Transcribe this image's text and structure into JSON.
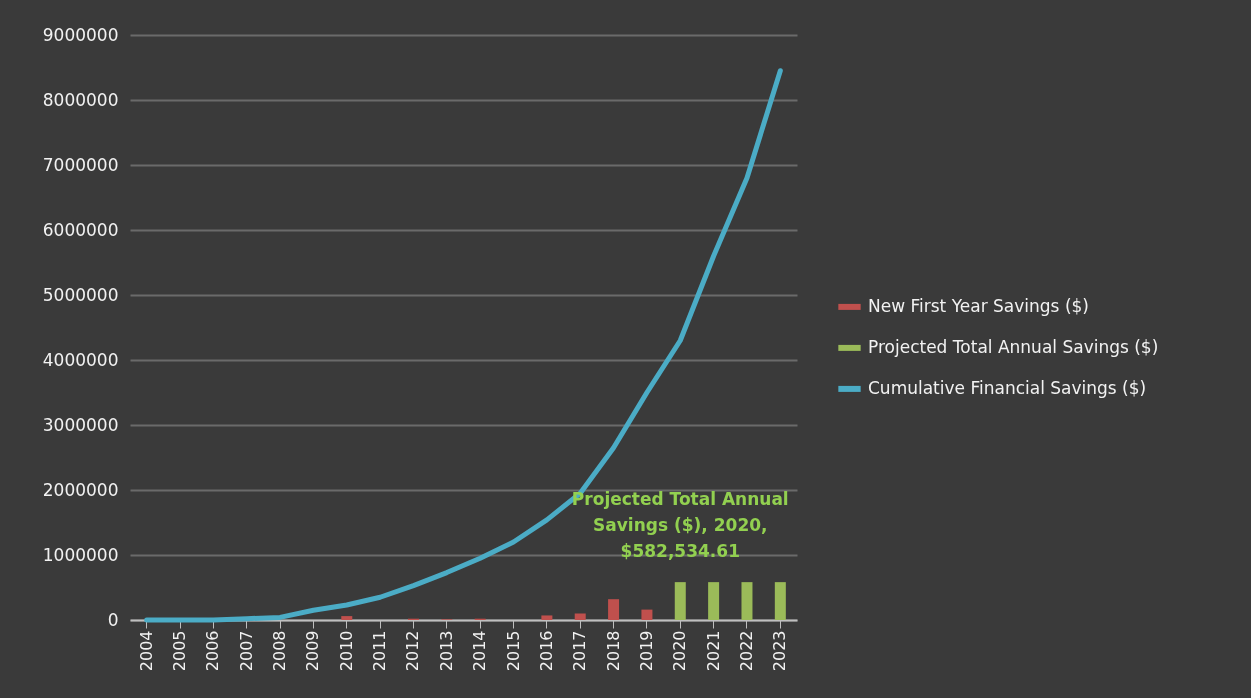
{
  "chart_data": {
    "type": "bar",
    "categories": [
      "2004",
      "2005",
      "2006",
      "2007",
      "2008",
      "2009",
      "2010",
      "2011",
      "2012",
      "2013",
      "2014",
      "2015",
      "2016",
      "2017",
      "2018",
      "2019",
      "2020",
      "2021",
      "2022",
      "2023"
    ],
    "series": [
      {
        "name": "New First Year Savings ($)",
        "color": "#c0504d",
        "values": [
          null,
          null,
          null,
          null,
          null,
          null,
          60000,
          null,
          20000,
          10000,
          20000,
          null,
          70000,
          100000,
          320000,
          160000,
          null,
          null,
          null,
          null
        ]
      },
      {
        "name": "Projected Total Annual Savings ($)",
        "color": "#9bbb59",
        "values": [
          null,
          null,
          null,
          null,
          null,
          null,
          null,
          null,
          null,
          null,
          null,
          null,
          null,
          null,
          null,
          null,
          582534.61,
          582534.61,
          582534.61,
          582534.61
        ]
      },
      {
        "name": "Cumulative Financial Savings ($)",
        "type": "line",
        "color": "#4bacc6",
        "values": [
          0,
          0,
          0,
          20000,
          40000,
          150000,
          230000,
          350000,
          530000,
          730000,
          950000,
          1200000,
          1540000,
          1950000,
          2650000,
          3500000,
          4300000,
          5600000,
          6800000,
          8450000
        ]
      }
    ],
    "ylim": [
      0,
      9000000
    ],
    "yticks": [
      0,
      1000000,
      2000000,
      3000000,
      4000000,
      5000000,
      6000000,
      7000000,
      8000000,
      9000000
    ],
    "grid": "y",
    "legend": "right",
    "line_style": "solid",
    "annotations": [
      {
        "text": "Projected Total Annual Savings ($), 2020, $582,534.61",
        "x": "2020",
        "y": 582534.61
      }
    ]
  }
}
